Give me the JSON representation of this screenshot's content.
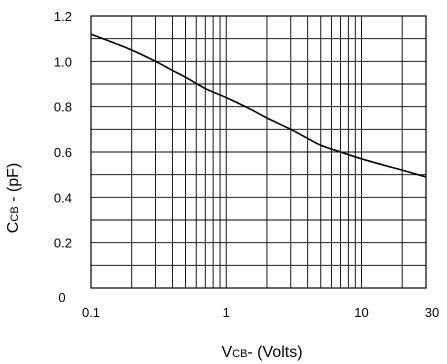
{
  "chart_data": {
    "type": "line",
    "title": "",
    "xlabel": {
      "prefix": "V",
      "subscript": "CB",
      "suffix": "- (Volts)"
    },
    "ylabel": {
      "prefix": "C",
      "subscript": "CB",
      "suffix": " - (pF)"
    },
    "x_scale": "log",
    "xlim": [
      0.1,
      30
    ],
    "ylim": [
      0,
      1.2
    ],
    "grid": true,
    "x_ticks": [
      {
        "value": 0.1,
        "label": "0.1"
      },
      {
        "value": 1,
        "label": "1"
      },
      {
        "value": 10,
        "label": "10"
      },
      {
        "value": 30,
        "label": "30"
      }
    ],
    "y_ticks": [
      {
        "value": 0,
        "label": "0"
      },
      {
        "value": 0.2,
        "label": "0.2"
      },
      {
        "value": 0.4,
        "label": "0.4"
      },
      {
        "value": 0.6,
        "label": "0.6"
      },
      {
        "value": 0.8,
        "label": "0.8"
      },
      {
        "value": 1.0,
        "label": "1.0"
      },
      {
        "value": 1.2,
        "label": "1.2"
      }
    ],
    "y_minor_step": 0.1,
    "x_minor": [
      0.2,
      0.3,
      0.4,
      0.5,
      0.6,
      0.7,
      0.8,
      0.9,
      2,
      3,
      4,
      5,
      6,
      7,
      8,
      9,
      20
    ],
    "series": [
      {
        "x": [
          0.1,
          0.15,
          0.2,
          0.3,
          0.4,
          0.5,
          0.7,
          1,
          1.5,
          2,
          3,
          4,
          5,
          7,
          10,
          15,
          20,
          30
        ],
        "y": [
          1.12,
          1.08,
          1.05,
          1.0,
          0.96,
          0.93,
          0.88,
          0.84,
          0.79,
          0.75,
          0.7,
          0.66,
          0.63,
          0.6,
          0.57,
          0.54,
          0.52,
          0.49
        ]
      }
    ],
    "colors": {
      "line": "#000000",
      "grid": "#000000",
      "background": "#ffffff"
    }
  }
}
